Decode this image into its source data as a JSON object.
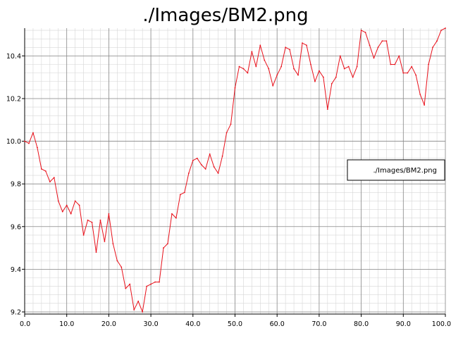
{
  "chart_data": {
    "type": "line",
    "title": "./Images/BM2.png",
    "xlabel": "",
    "ylabel": "",
    "xlim": [
      0,
      100
    ],
    "ylim": [
      9.19,
      10.53
    ],
    "x_ticks": [
      0,
      10,
      20,
      30,
      40,
      50,
      60,
      70,
      80,
      90,
      100
    ],
    "x_tick_labels": [
      "0.0",
      "10.0",
      "20.0",
      "30.0",
      "40.0",
      "50.0",
      "60.0",
      "70.0",
      "80.0",
      "90.0",
      "100.0"
    ],
    "y_ticks": [
      9.2,
      9.4,
      9.6,
      9.8,
      10.0,
      10.2,
      10.4
    ],
    "y_tick_labels": [
      "9.2",
      "9.4",
      "9.6",
      "9.8",
      "10.0",
      "10.2",
      "10.4"
    ],
    "grid": true,
    "legend_position": "right",
    "colors": {
      "series": "#e8101a",
      "major_grid": "#8a8a8a",
      "minor_grid": "#d6d6d6"
    },
    "series": [
      {
        "name": "./Images/BM2.png",
        "x": [
          0,
          1,
          2,
          3,
          4,
          5,
          6,
          7,
          8,
          9,
          10,
          11,
          12,
          13,
          14,
          15,
          16,
          17,
          18,
          19,
          20,
          21,
          22,
          23,
          24,
          25,
          26,
          27,
          28,
          29,
          30,
          31,
          32,
          33,
          34,
          35,
          36,
          37,
          38,
          39,
          40,
          41,
          42,
          43,
          44,
          45,
          46,
          47,
          48,
          49,
          50,
          51,
          52,
          53,
          54,
          55,
          56,
          57,
          58,
          59,
          60,
          61,
          62,
          63,
          64,
          65,
          66,
          67,
          68,
          69,
          70,
          71,
          72,
          73,
          74,
          75,
          76,
          77,
          78,
          79,
          80,
          81,
          82,
          83,
          84,
          85,
          86,
          87,
          88,
          89,
          90,
          91,
          92,
          93,
          94,
          95,
          96,
          97,
          98,
          99,
          100
        ],
        "values": [
          10.0,
          9.99,
          10.04,
          9.97,
          9.87,
          9.86,
          9.81,
          9.83,
          9.72,
          9.67,
          9.7,
          9.66,
          9.72,
          9.7,
          9.56,
          9.63,
          9.62,
          9.48,
          9.63,
          9.53,
          9.66,
          9.52,
          9.44,
          9.41,
          9.31,
          9.33,
          9.21,
          9.25,
          9.2,
          9.32,
          9.33,
          9.34,
          9.34,
          9.5,
          9.52,
          9.66,
          9.64,
          9.75,
          9.76,
          9.85,
          9.91,
          9.92,
          9.89,
          9.87,
          9.94,
          9.88,
          9.85,
          9.93,
          10.04,
          10.08,
          10.25,
          10.35,
          10.34,
          10.32,
          10.42,
          10.35,
          10.45,
          10.38,
          10.34,
          10.26,
          10.31,
          10.35,
          10.44,
          10.43,
          10.34,
          10.31,
          10.46,
          10.45,
          10.36,
          10.28,
          10.33,
          10.3,
          10.15,
          10.27,
          10.3,
          10.4,
          10.34,
          10.35,
          10.3,
          10.35,
          10.52,
          10.51,
          10.45,
          10.39,
          10.44,
          10.47,
          10.47,
          10.36,
          10.36,
          10.4,
          10.32,
          10.32,
          10.35,
          10.31,
          10.22,
          10.17,
          10.36,
          10.44,
          10.47,
          10.52,
          10.53
        ]
      }
    ]
  }
}
